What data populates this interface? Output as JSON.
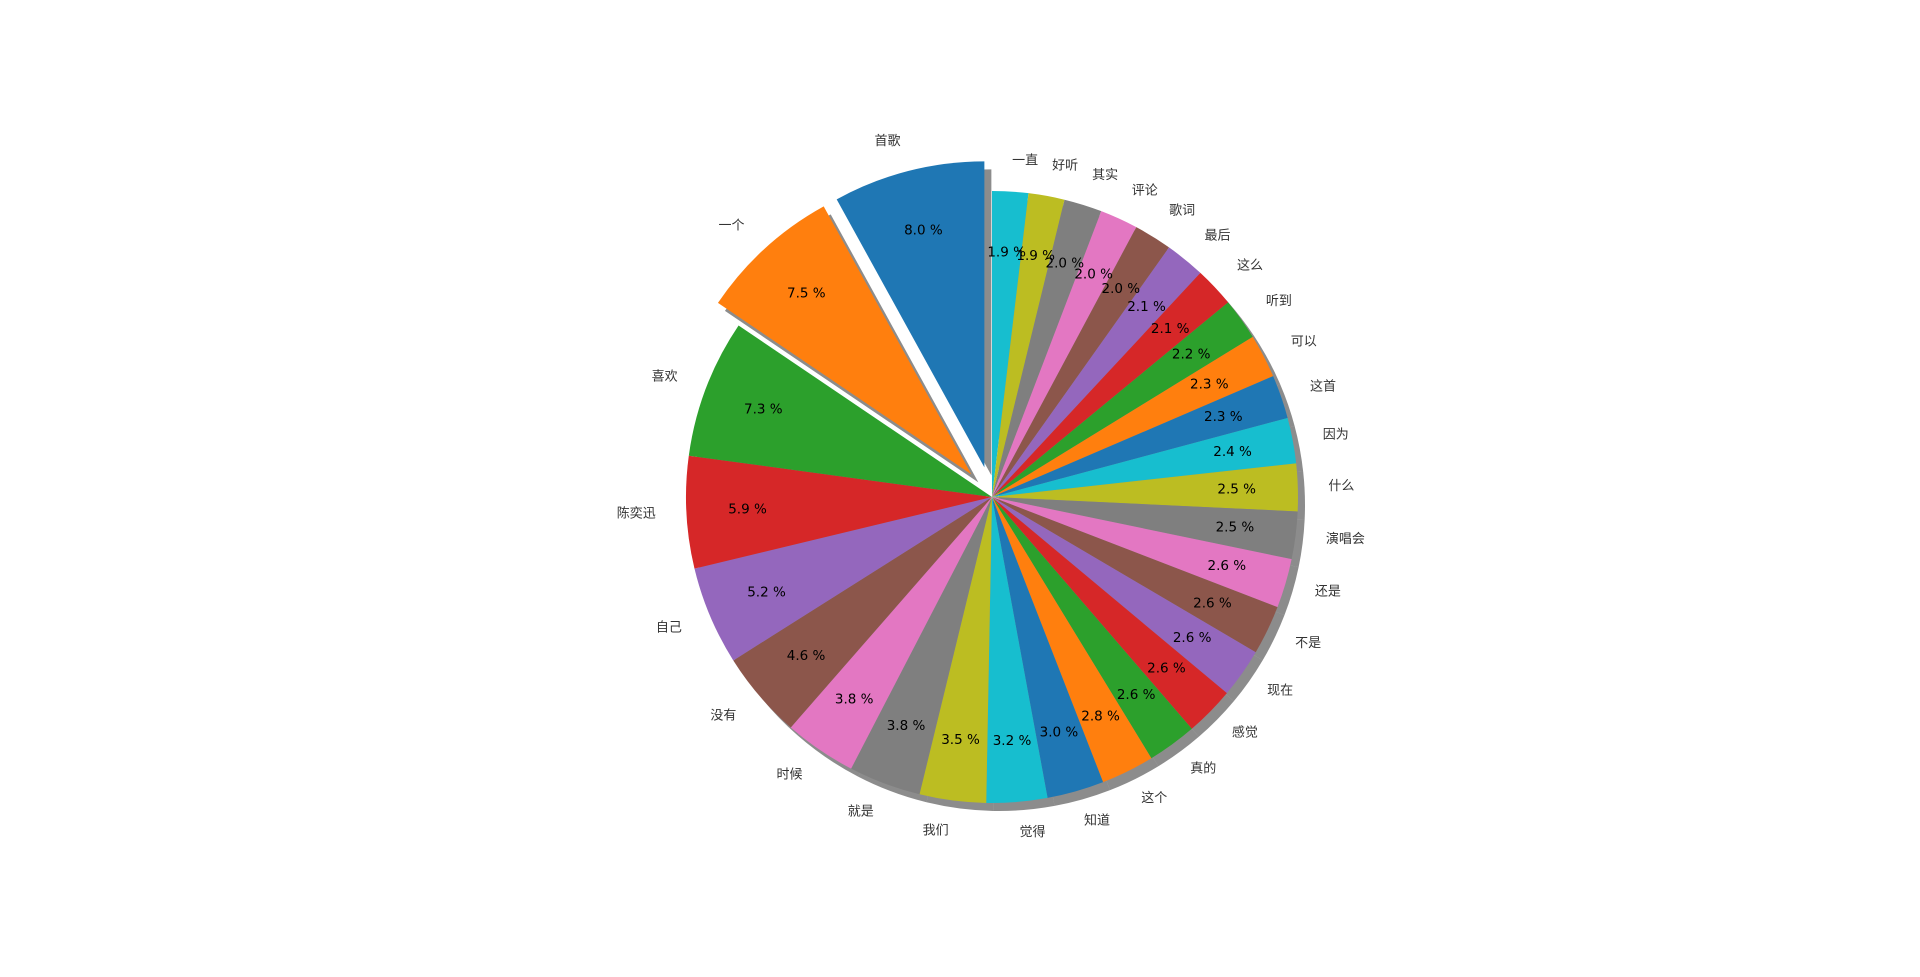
{
  "chart_data": {
    "type": "pie",
    "title": "",
    "start_angle_deg": 90,
    "direction": "clockwise",
    "shadow": true,
    "exploded": [
      "首歌",
      "一个"
    ],
    "slices": [
      {
        "label": "一直",
        "value": 1.9,
        "color": "#17becf"
      },
      {
        "label": "好听",
        "value": 1.9,
        "color": "#bcbd22"
      },
      {
        "label": "其实",
        "value": 2.0,
        "color": "#7f7f7f"
      },
      {
        "label": "评论",
        "value": 2.0,
        "color": "#e377c2"
      },
      {
        "label": "歌词",
        "value": 2.0,
        "color": "#8c564b"
      },
      {
        "label": "最后",
        "value": 2.1,
        "color": "#9467bd"
      },
      {
        "label": "这么",
        "value": 2.1,
        "color": "#d62728"
      },
      {
        "label": "听到",
        "value": 2.2,
        "color": "#2ca02c"
      },
      {
        "label": "可以",
        "value": 2.3,
        "color": "#ff7f0e"
      },
      {
        "label": "这首",
        "value": 2.3,
        "color": "#1f77b4"
      },
      {
        "label": "因为",
        "value": 2.4,
        "color": "#17becf"
      },
      {
        "label": "什么",
        "value": 2.5,
        "color": "#bcbd22"
      },
      {
        "label": "演唱会",
        "value": 2.5,
        "color": "#7f7f7f"
      },
      {
        "label": "还是",
        "value": 2.6,
        "color": "#e377c2"
      },
      {
        "label": "不是",
        "value": 2.6,
        "color": "#8c564b"
      },
      {
        "label": "现在",
        "value": 2.6,
        "color": "#9467bd"
      },
      {
        "label": "感觉",
        "value": 2.6,
        "color": "#d62728"
      },
      {
        "label": "真的",
        "value": 2.6,
        "color": "#2ca02c"
      },
      {
        "label": "这个",
        "value": 2.8,
        "color": "#ff7f0e"
      },
      {
        "label": "知道",
        "value": 3.0,
        "color": "#1f77b4"
      },
      {
        "label": "觉得",
        "value": 3.2,
        "color": "#17becf"
      },
      {
        "label": "我们",
        "value": 3.5,
        "color": "#bcbd22"
      },
      {
        "label": "就是",
        "value": 3.8,
        "color": "#7f7f7f"
      },
      {
        "label": "时候",
        "value": 3.8,
        "color": "#e377c2"
      },
      {
        "label": "没有",
        "value": 4.6,
        "color": "#8c564b"
      },
      {
        "label": "自己",
        "value": 5.2,
        "color": "#9467bd"
      },
      {
        "label": "陈奕迅",
        "value": 5.9,
        "color": "#d62728"
      },
      {
        "label": "喜欢",
        "value": 7.3,
        "color": "#2ca02c"
      },
      {
        "label": "一个",
        "value": 7.5,
        "color": "#ff7f0e"
      },
      {
        "label": "首歌",
        "value": 8.0,
        "color": "#1f77b4"
      }
    ]
  }
}
